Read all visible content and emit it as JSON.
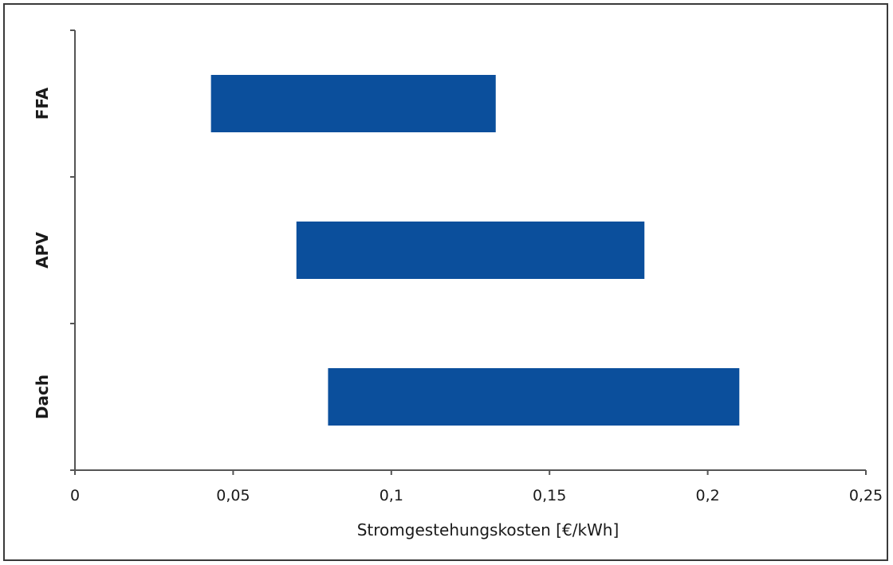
{
  "chart_data": {
    "type": "bar",
    "orientation": "horizontal",
    "subtype": "floating-range",
    "categories": [
      "FFA",
      "APV",
      "Dach"
    ],
    "ranges": [
      {
        "category": "FFA",
        "low": 0.043,
        "high": 0.133
      },
      {
        "category": "APV",
        "low": 0.07,
        "high": 0.18
      },
      {
        "category": "Dach",
        "low": 0.08,
        "high": 0.21
      }
    ],
    "xlabel": "Stromgestehungskosten [€/kWh]",
    "ylabel": "",
    "xlim": [
      0,
      0.25
    ],
    "xticks": [
      0,
      0.05,
      0.1,
      0.15,
      0.2,
      0.25
    ],
    "xtick_labels": [
      "0",
      "0,05",
      "0,1",
      "0,15",
      "0,2",
      "0,25"
    ],
    "grid": false,
    "legend": "none",
    "bar_color": "#0b4f9c"
  }
}
